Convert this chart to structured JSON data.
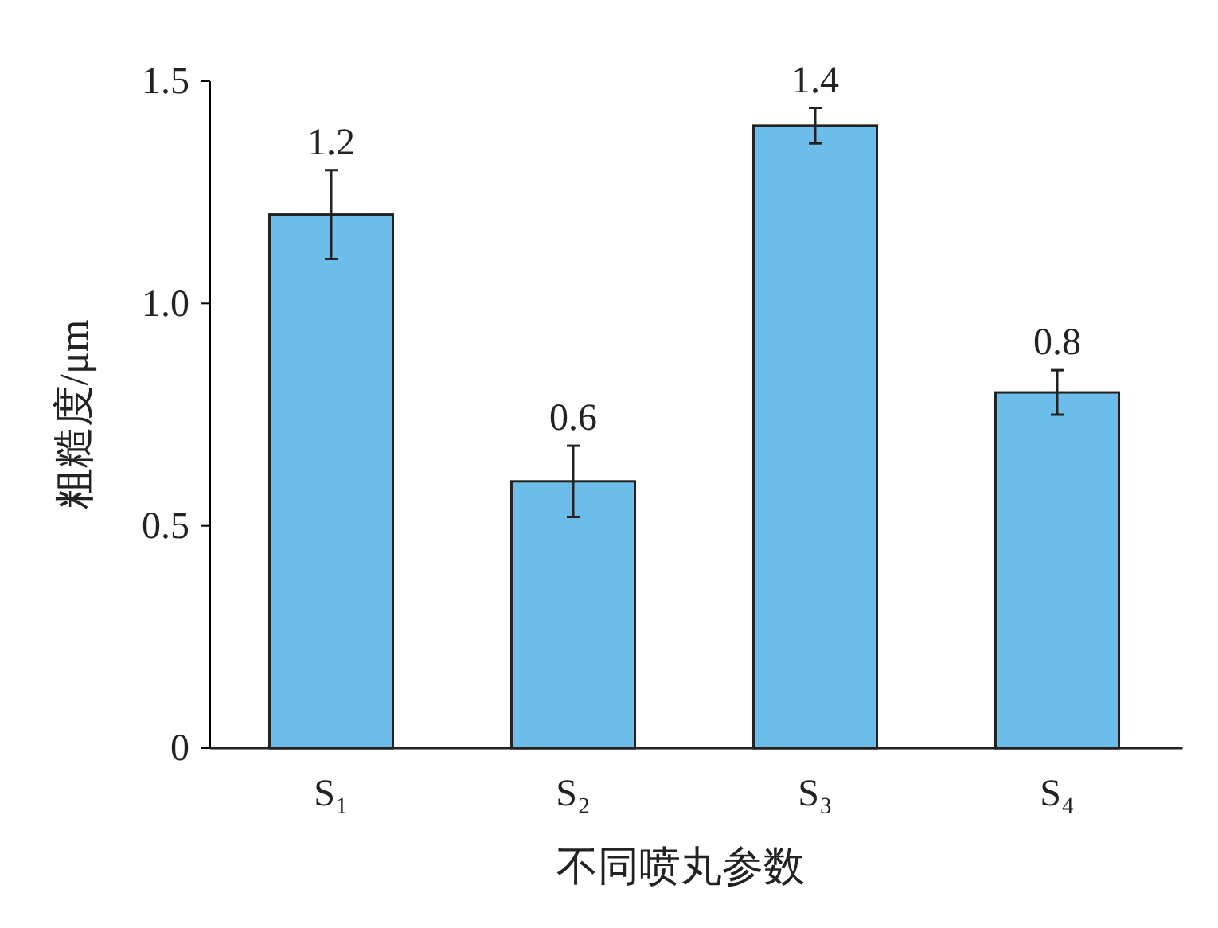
{
  "chart_data": {
    "type": "bar",
    "xlabel": "不同喷丸参数",
    "ylabel": "粗糙度/μm",
    "categories": [
      "S₁",
      "S₂",
      "S₃",
      "S₄"
    ],
    "values": [
      1.2,
      0.6,
      1.4,
      0.8
    ],
    "errors": [
      0.1,
      0.08,
      0.04,
      0.05
    ],
    "color": "#6dbdea",
    "ylim": [
      0,
      1.5
    ],
    "yticks": [
      0,
      0.5,
      {
        "value": 1,
        "label": "1.0"
      },
      1.5
    ],
    "data_labels": true
  }
}
